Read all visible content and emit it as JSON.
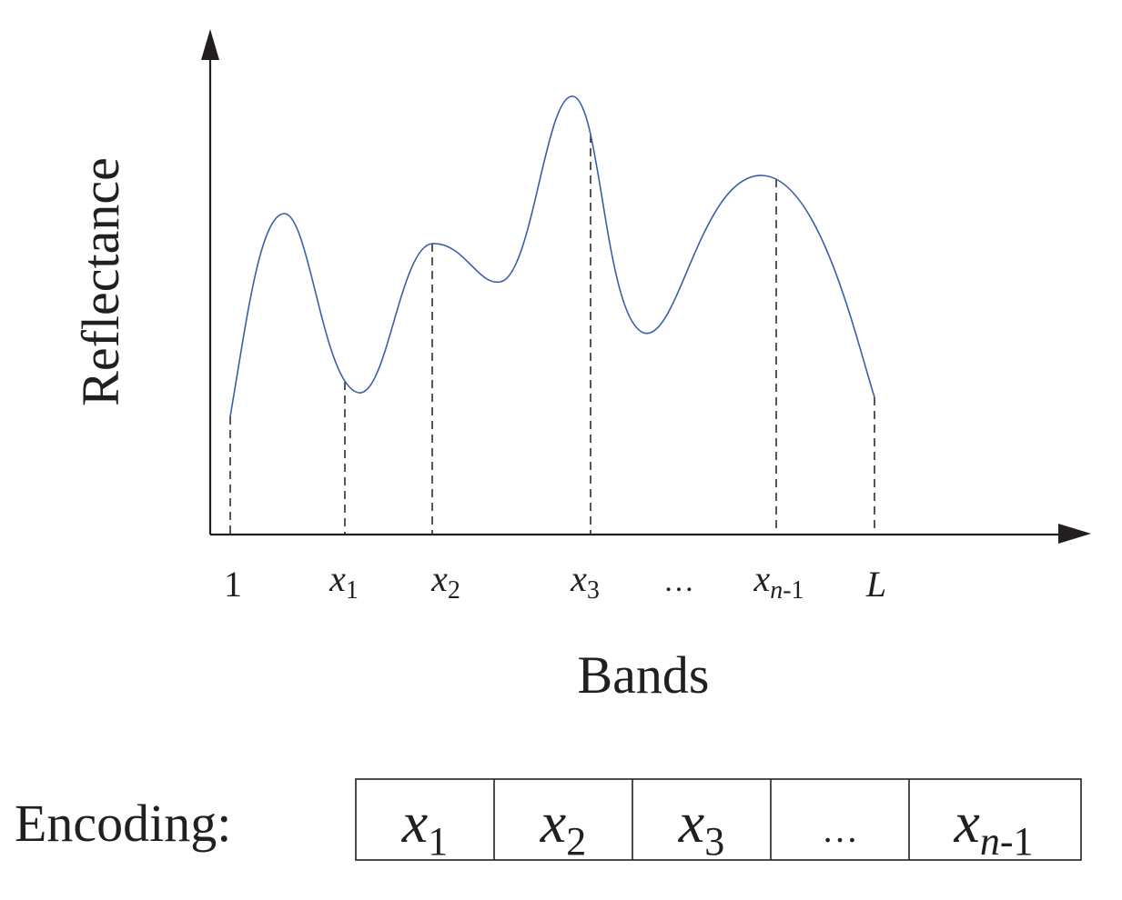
{
  "colors": {
    "curve": "#3a5fa8",
    "ink": "#231f20",
    "background": "#ffffff"
  },
  "y_axis_label": "Reflectance",
  "x_axis_label": "Bands",
  "ticks": [
    {
      "main": "1",
      "sub": "",
      "italic": false
    },
    {
      "main": "x",
      "sub": "1",
      "italic": true
    },
    {
      "main": "x",
      "sub": "2",
      "italic": true
    },
    {
      "main": "x",
      "sub": "3",
      "italic": true
    },
    {
      "main": "…",
      "sub": "",
      "italic": false
    },
    {
      "main": "x",
      "sub": "n-1",
      "italic": true
    },
    {
      "main": "L",
      "sub": "",
      "italic": true
    }
  ],
  "encoding": {
    "label": "Encoding:",
    "cells": [
      {
        "main": "x",
        "sub": "1"
      },
      {
        "main": "x",
        "sub": "2"
      },
      {
        "main": "x",
        "sub": "3"
      },
      {
        "main": "…",
        "sub": ""
      },
      {
        "main": "x",
        "sub": "n-1"
      }
    ]
  }
}
